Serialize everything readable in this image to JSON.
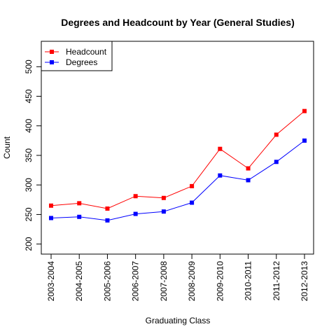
{
  "chart_data": {
    "type": "line",
    "title": "Degrees and Headcount by Year (General Studies)",
    "xlabel": "Graduating Class",
    "ylabel": "Count",
    "categories": [
      "2003-2004",
      "2004-2005",
      "2005-2006",
      "2006-2007",
      "2007-2008",
      "2008-2009",
      "2009-2010",
      "2010-2011",
      "2011-2012",
      "2012-2013"
    ],
    "yticks": [
      200,
      250,
      300,
      350,
      400,
      450,
      500
    ],
    "ylim": [
      183,
      543
    ],
    "grid": false,
    "legend_position": "top-left",
    "series": [
      {
        "name": "Headcount",
        "color": "#ff0000",
        "marker_color": "#ff0000",
        "values": [
          265,
          269,
          260,
          281,
          278,
          298,
          361,
          328,
          385,
          425
        ]
      },
      {
        "name": "Degrees",
        "color": "#0000ff",
        "marker_color": "#0000ff",
        "values": [
          244,
          246,
          240,
          251,
          255,
          270,
          316,
          308,
          339,
          375
        ]
      }
    ]
  }
}
